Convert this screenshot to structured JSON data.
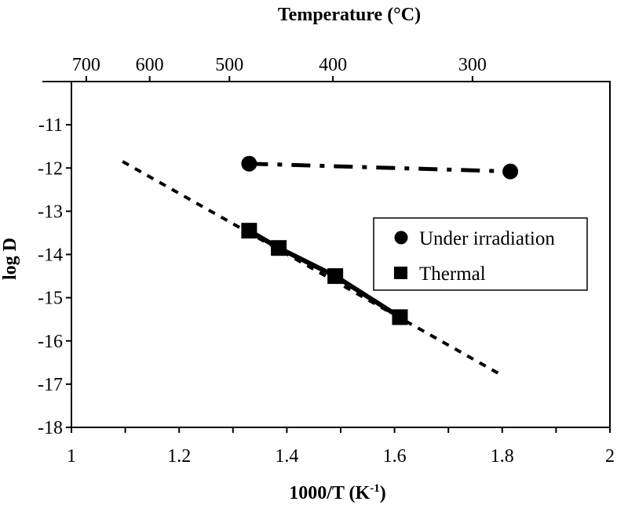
{
  "chart_data": {
    "type": "scatter",
    "xlabel": "1000/T (K",
    "xlabel_sup": "-1",
    "xlabel_suffix": ")",
    "top_axis_label": "Temperature (°C)",
    "ylabel": "log D",
    "xlim": [
      1,
      2
    ],
    "ylim": [
      -18,
      -10
    ],
    "x_ticks": [
      1,
      1.2,
      1.4,
      1.6,
      1.8,
      2
    ],
    "x_tick_labels": [
      "1",
      "1.2",
      "1.4",
      "1.6",
      "1.8",
      "2"
    ],
    "y_ticks": [
      -11,
      -12,
      -13,
      -14,
      -15,
      -16,
      -17,
      -18
    ],
    "y_tick_labels": [
      "-11",
      "-12",
      "-13",
      "-14",
      "-15",
      "-16",
      "-17",
      "-18"
    ],
    "top_ticks_celsius": [
      700,
      600,
      500,
      400,
      300
    ],
    "top_tick_labels": [
      "700",
      "600",
      "500",
      "400",
      "300"
    ],
    "grid": false,
    "legend_position": "right",
    "series": [
      {
        "name": "Under irradiation",
        "marker": "circle",
        "line_style": "dash-dot",
        "points": [
          {
            "x": 1.33,
            "y": -11.9
          },
          {
            "x": 1.815,
            "y": -12.08
          }
        ]
      },
      {
        "name": "Thermal",
        "marker": "square",
        "line_style": "solid",
        "points": [
          {
            "x": 1.33,
            "y": -13.45
          },
          {
            "x": 1.385,
            "y": -13.85
          },
          {
            "x": 1.49,
            "y": -14.5
          },
          {
            "x": 1.61,
            "y": -15.45
          }
        ]
      }
    ],
    "extrapolation_line": {
      "style": "dotted",
      "points": [
        {
          "x": 1.095,
          "y": -11.85
        },
        {
          "x": 1.8,
          "y": -16.8
        }
      ]
    }
  }
}
